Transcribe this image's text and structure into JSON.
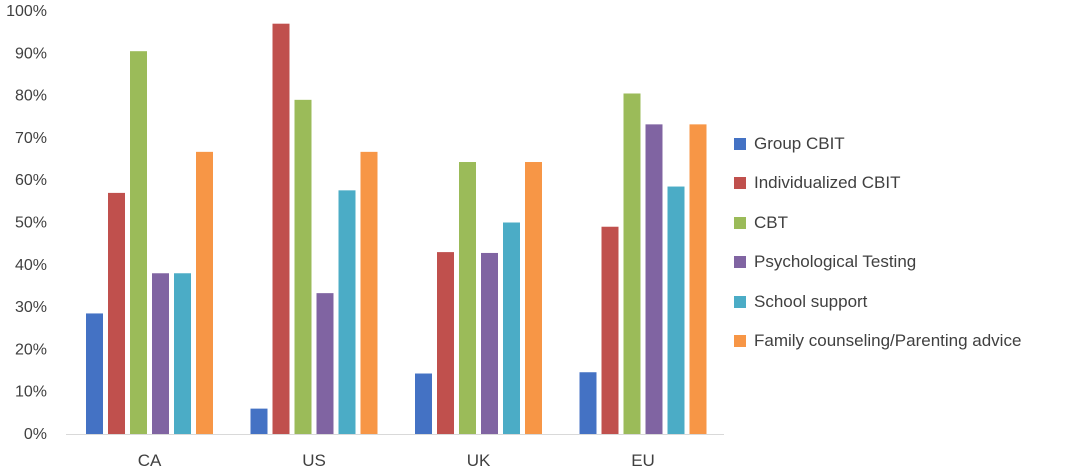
{
  "chart_data": {
    "type": "bar",
    "categories": [
      "CA",
      "US",
      "UK",
      "EU"
    ],
    "ylim": [
      0,
      100
    ],
    "yticks": [
      "0%",
      "10%",
      "20%",
      "30%",
      "40%",
      "50%",
      "60%",
      "70%",
      "80%",
      "90%",
      "100%"
    ],
    "grid": false,
    "legend_position": "right",
    "series": [
      {
        "name": "Group CBIT",
        "color": "#4472C4",
        "values": [
          28.5,
          6,
          14.3,
          14.6
        ]
      },
      {
        "name": "Individualized CBIT",
        "color": "#C0504D",
        "values": [
          57,
          97,
          43,
          49
        ]
      },
      {
        "name": "CBT",
        "color": "#9BBB59",
        "values": [
          90.5,
          79,
          64.3,
          80.5
        ]
      },
      {
        "name": "Psychological Testing",
        "color": "#8064A2",
        "values": [
          38,
          33.3,
          42.8,
          73.2
        ]
      },
      {
        "name": "School support",
        "color": "#4BACC6",
        "values": [
          38,
          57.6,
          50,
          58.5
        ]
      },
      {
        "name": "Family counseling/Parenting advice",
        "color": "#F79646",
        "values": [
          66.7,
          66.7,
          64.3,
          73.2
        ]
      }
    ]
  }
}
